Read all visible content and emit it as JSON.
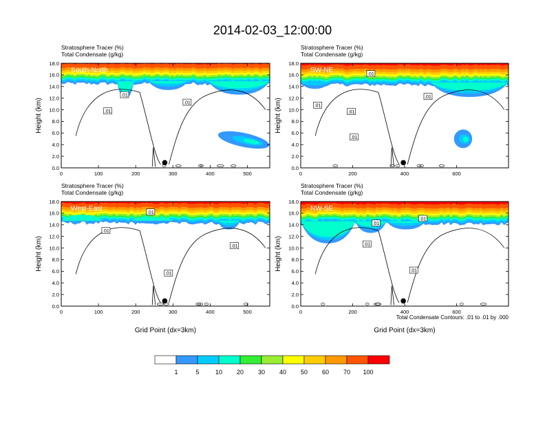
{
  "figure": {
    "title": "2014-02-03_12:00:00",
    "contour_note": "Total Condensate Contours: .01 to .01 by .000"
  },
  "colors": {
    "frame": "#000000",
    "contour": "#000000",
    "marker": "#000000",
    "panel_label_text": "#ffffff"
  },
  "chart_data": [
    {
      "type": "heatmap",
      "panel_label": "South-North",
      "subtitle_lines": [
        "Stratosphere Tracer   (%)",
        "Total Condensate   (g/kg)"
      ],
      "ylabel": "Height (km)",
      "xlabel": "",
      "xlim": [
        0,
        560
      ],
      "ylim": [
        0,
        18
      ],
      "xticks": [
        0,
        100,
        200,
        300,
        400,
        500
      ],
      "yticks": [
        0.0,
        2.0,
        4.0,
        6.0,
        8.0,
        10.0,
        12.0,
        14.0,
        16.0,
        18.0
      ],
      "tracer_base_km": 16.2,
      "marker": {
        "x": 278,
        "y": 0.9
      },
      "contour_labels": [
        {
          "text": ".01",
          "x": 125,
          "y": 9.8
        },
        {
          "text": ".01",
          "x": 170,
          "y": 12.6
        },
        {
          "text": ".01",
          "x": 338,
          "y": 11.3
        }
      ],
      "intrusions": [
        {
          "x0": 235,
          "x1": 340,
          "top": 13.4
        },
        {
          "x0": 395,
          "x1": 560,
          "top": 12.6
        },
        {
          "x0": 150,
          "x1": 195,
          "top": 12.0
        }
      ],
      "blobs": [
        {
          "x0": 420,
          "x1": 560,
          "y0": 3.6,
          "y1": 6.0
        }
      ]
    },
    {
      "type": "heatmap",
      "panel_label": "SW-NE",
      "subtitle_lines": [
        "Stratosphere Tracer   (%)",
        "Total Condensate   (g/kg)"
      ],
      "ylabel": "Height (km)",
      "xlabel": "",
      "xlim": [
        0,
        800
      ],
      "ylim": [
        0,
        18
      ],
      "xticks": [
        0,
        200,
        400,
        600
      ],
      "yticks": [
        0.0,
        2.0,
        4.0,
        6.0,
        8.0,
        10.0,
        12.0,
        14.0,
        16.0,
        18.0
      ],
      "tracer_base_km": 16.0,
      "marker": {
        "x": 395,
        "y": 0.9
      },
      "contour_labels": [
        {
          "text": ".01",
          "x": 65,
          "y": 10.8
        },
        {
          "text": ".01",
          "x": 195,
          "y": 9.7
        },
        {
          "text": ".01",
          "x": 205,
          "y": 5.3
        },
        {
          "text": ".01",
          "x": 270,
          "y": 16.2
        },
        {
          "text": ".01",
          "x": 490,
          "y": 12.3
        }
      ],
      "intrusions": [
        {
          "x0": 0,
          "x1": 110,
          "top": 13.6
        },
        {
          "x0": 500,
          "x1": 800,
          "top": 12.2
        }
      ],
      "blobs": [
        {
          "x0": 590,
          "x1": 660,
          "y0": 3.4,
          "y1": 6.6
        }
      ]
    },
    {
      "type": "heatmap",
      "panel_label": "West-East",
      "subtitle_lines": [
        "Stratosphere Tracer   (%)",
        "Total Condensate   (g/kg)"
      ],
      "ylabel": "Height (km)",
      "xlabel": "Grid Point (dx=3km)",
      "xlim": [
        0,
        560
      ],
      "ylim": [
        0,
        18
      ],
      "xticks": [
        0,
        100,
        200,
        300,
        400,
        500
      ],
      "yticks": [
        0.0,
        2.0,
        4.0,
        6.0,
        8.0,
        10.0,
        12.0,
        14.0,
        16.0,
        18.0
      ],
      "tracer_base_km": 16.0,
      "marker": {
        "x": 278,
        "y": 0.9
      },
      "contour_labels": [
        {
          "text": ".01",
          "x": 120,
          "y": 13.0
        },
        {
          "text": ".01",
          "x": 240,
          "y": 16.2
        },
        {
          "text": ".01",
          "x": 465,
          "y": 10.4
        },
        {
          "text": ".01",
          "x": 288,
          "y": 5.7
        }
      ],
      "intrusions": [
        {
          "x0": 0,
          "x1": 110,
          "top": 14.6
        },
        {
          "x0": 190,
          "x1": 300,
          "top": 14.2
        },
        {
          "x0": 420,
          "x1": 480,
          "top": 13.2
        }
      ],
      "blobs": []
    },
    {
      "type": "heatmap",
      "panel_label": "NW-SE",
      "subtitle_lines": [
        "Stratosphere Tracer   (%)",
        "Total Condensate   (g/kg)"
      ],
      "ylabel": "Height (km)",
      "xlabel": "Grid Point (dx=3km)",
      "xlim": [
        0,
        800
      ],
      "ylim": [
        0,
        18
      ],
      "xticks": [
        0,
        200,
        400,
        600
      ],
      "yticks": [
        0.0,
        2.0,
        4.0,
        6.0,
        8.0,
        10.0,
        12.0,
        14.0,
        16.0,
        18.0
      ],
      "tracer_base_km": 15.9,
      "marker": {
        "x": 395,
        "y": 0.9
      },
      "contour_labels": [
        {
          "text": ".01",
          "x": 290,
          "y": 14.3
        },
        {
          "text": ".01",
          "x": 470,
          "y": 15.1
        },
        {
          "text": ".01",
          "x": 255,
          "y": 10.7
        },
        {
          "text": ".01",
          "x": 435,
          "y": 6.2
        }
      ],
      "intrusions": [
        {
          "x0": 0,
          "x1": 210,
          "top": 10.8
        },
        {
          "x0": 210,
          "x1": 330,
          "top": 12.6
        },
        {
          "x0": 330,
          "x1": 480,
          "top": 13.2
        }
      ],
      "blobs": []
    }
  ],
  "colorbar": {
    "labels": [
      "1",
      "5",
      "10",
      "20",
      "30",
      "40",
      "50",
      "60",
      "70",
      "100"
    ],
    "colors": [
      "#ffffff",
      "#3399ff",
      "#00ccff",
      "#00ffcc",
      "#33ee33",
      "#99ee33",
      "#ffff00",
      "#ffcc00",
      "#ff9900",
      "#ff5500",
      "#ff0000"
    ]
  }
}
